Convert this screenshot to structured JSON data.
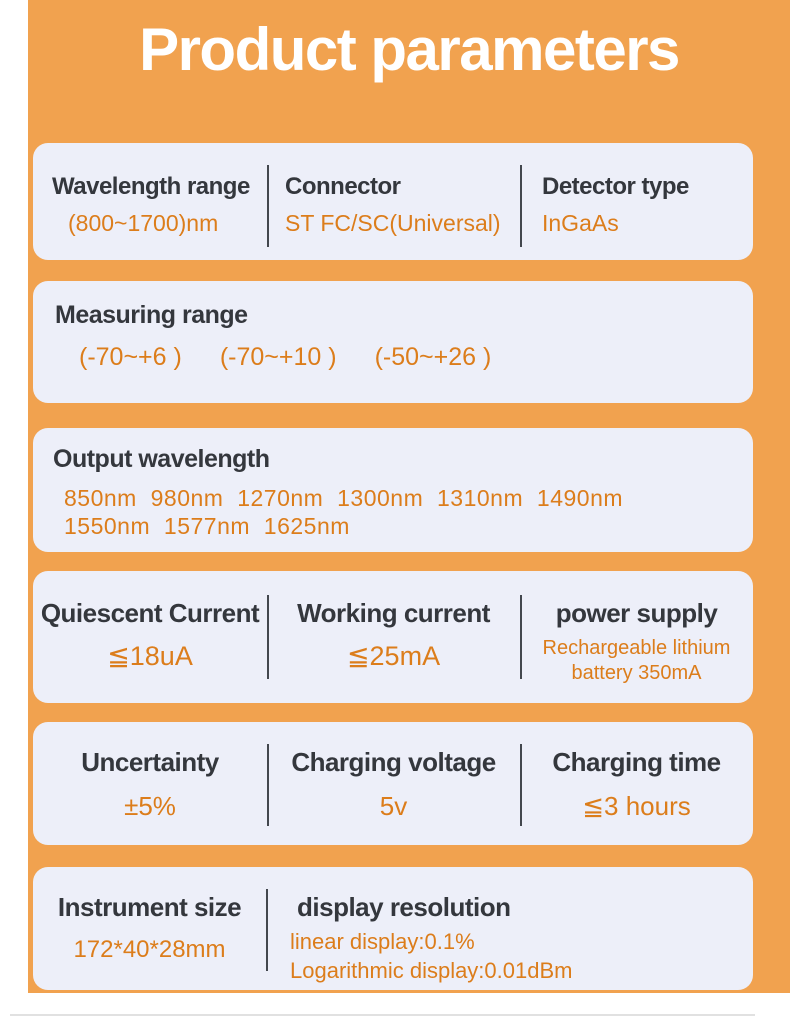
{
  "title": "Product parameters",
  "colors": {
    "background": "#f1a24f",
    "card_background": "#edeff9",
    "label_text": "#34373d",
    "value_text": "#dc7d1b",
    "divider": "#43474e",
    "title_text": "#ffffff"
  },
  "cards": [
    {
      "cols": [
        {
          "label": "Wavelength range",
          "value": "(800~1700)nm"
        },
        {
          "label": "Connector",
          "value": "ST FC/SC(Universal)"
        },
        {
          "label": "Detector type",
          "value": "InGaAs"
        }
      ]
    },
    {
      "label": "Measuring range",
      "values": [
        "(-70~+6 )",
        "(-70~+10 )",
        "(-50~+26 )"
      ]
    },
    {
      "label": "Output wavelength",
      "lines": [
        "850nm  980nm  1270nm  1300nm  1310nm  1490nm",
        "1550nm  1577nm  1625nm"
      ]
    },
    {
      "cols": [
        {
          "label": "Quiescent Current",
          "value": "≦18uA"
        },
        {
          "label": "Working current",
          "value": "≦25mA"
        },
        {
          "label": "power supply",
          "value_lines": [
            "Rechargeable lithium",
            "battery 350mA"
          ]
        }
      ]
    },
    {
      "cols": [
        {
          "label": "Uncertainty",
          "value": "±5%"
        },
        {
          "label": "Charging voltage",
          "value": "5v"
        },
        {
          "label": "Charging time",
          "value": "≦3 hours"
        }
      ]
    },
    {
      "cols": [
        {
          "label": "Instrument size",
          "value": "172*40*28mm"
        },
        {
          "label": "display resolution",
          "value_lines": [
            "linear display:0.1%",
            "Logarithmic display:0.01dBm"
          ]
        }
      ]
    }
  ]
}
